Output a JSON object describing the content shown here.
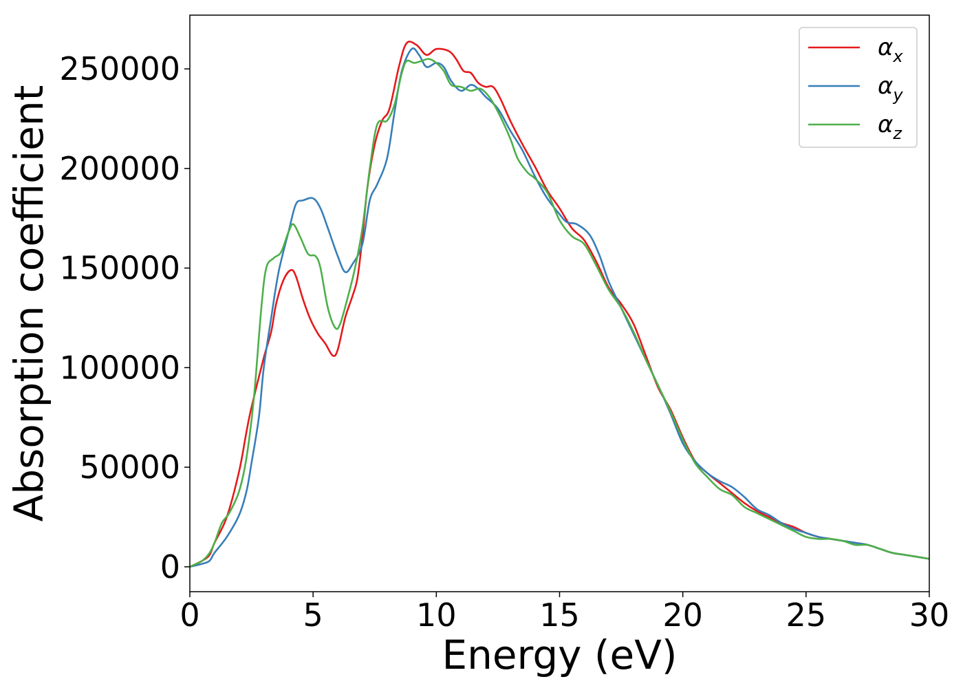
{
  "chart_data": {
    "type": "line",
    "xlabel": "Energy (eV)",
    "ylabel": "Absorption coefficient",
    "xlim": [
      0,
      30
    ],
    "ylim": [
      -12500,
      277000
    ],
    "xticks": [
      0,
      5,
      10,
      15,
      20,
      25,
      30
    ],
    "yticks": [
      0,
      50000,
      100000,
      150000,
      200000,
      250000
    ],
    "grid": false,
    "legend_position": "top-right",
    "series": [
      {
        "name": "α_x",
        "label_main": "α",
        "label_sub": "x",
        "color": "#e41a1c",
        "points": [
          [
            0,
            0
          ],
          [
            0.5,
            3000
          ],
          [
            0.8,
            6000
          ],
          [
            1.0,
            12000
          ],
          [
            1.5,
            25000
          ],
          [
            2.0,
            48000
          ],
          [
            2.3,
            68000
          ],
          [
            2.5,
            80000
          ],
          [
            3.0,
            105000
          ],
          [
            3.3,
            118000
          ],
          [
            3.5,
            132000
          ],
          [
            3.8,
            144000
          ],
          [
            4.1,
            149000
          ],
          [
            4.3,
            146000
          ],
          [
            4.6,
            134000
          ],
          [
            4.9,
            124000
          ],
          [
            5.2,
            117000
          ],
          [
            5.5,
            112000
          ],
          [
            5.8,
            106000
          ],
          [
            6.0,
            109000
          ],
          [
            6.3,
            125000
          ],
          [
            6.6,
            136000
          ],
          [
            6.8,
            145000
          ],
          [
            7.0,
            165000
          ],
          [
            7.2,
            190000
          ],
          [
            7.5,
            212000
          ],
          [
            7.8,
            224000
          ],
          [
            8.1,
            230000
          ],
          [
            8.5,
            252000
          ],
          [
            8.8,
            263000
          ],
          [
            9.2,
            262000
          ],
          [
            9.6,
            257000
          ],
          [
            10.0,
            260000
          ],
          [
            10.5,
            259000
          ],
          [
            10.8,
            255000
          ],
          [
            11.1,
            249000
          ],
          [
            11.4,
            248000
          ],
          [
            11.7,
            243000
          ],
          [
            12.0,
            241000
          ],
          [
            12.3,
            241000
          ],
          [
            12.6,
            235000
          ],
          [
            13.0,
            224000
          ],
          [
            13.5,
            212000
          ],
          [
            14.0,
            201000
          ],
          [
            14.5,
            189000
          ],
          [
            15.0,
            180000
          ],
          [
            15.5,
            170000
          ],
          [
            16.0,
            164000
          ],
          [
            16.5,
            153000
          ],
          [
            17.0,
            140000
          ],
          [
            17.5,
            132000
          ],
          [
            18.0,
            122000
          ],
          [
            18.5,
            106000
          ],
          [
            19.0,
            90000
          ],
          [
            19.5,
            79000
          ],
          [
            20.0,
            65000
          ],
          [
            20.5,
            53000
          ],
          [
            21.0,
            47000
          ],
          [
            21.5,
            42000
          ],
          [
            22.0,
            37000
          ],
          [
            22.5,
            32000
          ],
          [
            23.0,
            28000
          ],
          [
            23.5,
            25000
          ],
          [
            24.0,
            22000
          ],
          [
            24.5,
            20000
          ],
          [
            25.0,
            17000
          ],
          [
            25.5,
            15000
          ],
          [
            26.0,
            14000
          ],
          [
            26.5,
            13000
          ],
          [
            27.0,
            12000
          ],
          [
            27.5,
            11000
          ],
          [
            28.0,
            9000
          ],
          [
            28.5,
            7000
          ],
          [
            29.0,
            6000
          ],
          [
            29.5,
            5000
          ],
          [
            30.0,
            4000
          ]
        ]
      },
      {
        "name": "α_y",
        "label_main": "α",
        "label_sub": "y",
        "color": "#377eb8",
        "points": [
          [
            0,
            0
          ],
          [
            0.5,
            1500
          ],
          [
            0.8,
            3000
          ],
          [
            1.0,
            7000
          ],
          [
            1.5,
            15000
          ],
          [
            2.0,
            26000
          ],
          [
            2.3,
            38000
          ],
          [
            2.5,
            52000
          ],
          [
            2.8,
            75000
          ],
          [
            3.0,
            100000
          ],
          [
            3.3,
            125000
          ],
          [
            3.6,
            148000
          ],
          [
            4.0,
            168000
          ],
          [
            4.3,
            182000
          ],
          [
            4.6,
            184000
          ],
          [
            5.0,
            185000
          ],
          [
            5.3,
            180000
          ],
          [
            5.6,
            170000
          ],
          [
            6.0,
            156000
          ],
          [
            6.3,
            148000
          ],
          [
            6.6,
            152000
          ],
          [
            7.0,
            162000
          ],
          [
            7.3,
            184000
          ],
          [
            7.6,
            192000
          ],
          [
            8.0,
            205000
          ],
          [
            8.3,
            228000
          ],
          [
            8.6,
            249000
          ],
          [
            9.0,
            260000
          ],
          [
            9.3,
            257000
          ],
          [
            9.6,
            251000
          ],
          [
            10.0,
            253000
          ],
          [
            10.3,
            251000
          ],
          [
            10.6,
            244000
          ],
          [
            11.0,
            239000
          ],
          [
            11.4,
            242000
          ],
          [
            11.7,
            240000
          ],
          [
            12.0,
            236000
          ],
          [
            12.5,
            230000
          ],
          [
            13.0,
            219000
          ],
          [
            13.5,
            209000
          ],
          [
            14.0,
            196000
          ],
          [
            14.5,
            185000
          ],
          [
            15.0,
            177000
          ],
          [
            15.3,
            173000
          ],
          [
            15.7,
            172000
          ],
          [
            16.2,
            167000
          ],
          [
            16.6,
            157000
          ],
          [
            17.0,
            143000
          ],
          [
            17.5,
            130000
          ],
          [
            18.0,
            117000
          ],
          [
            18.5,
            104000
          ],
          [
            19.0,
            91000
          ],
          [
            19.5,
            77000
          ],
          [
            20.0,
            62000
          ],
          [
            20.5,
            53000
          ],
          [
            21.0,
            47000
          ],
          [
            21.5,
            43000
          ],
          [
            22.0,
            40000
          ],
          [
            22.5,
            35000
          ],
          [
            23.0,
            29000
          ],
          [
            23.5,
            26000
          ],
          [
            24.0,
            22000
          ],
          [
            24.5,
            19000
          ],
          [
            25.0,
            17000
          ],
          [
            25.5,
            15000
          ],
          [
            26.0,
            14000
          ],
          [
            26.5,
            13000
          ],
          [
            27.0,
            12000
          ],
          [
            27.5,
            11000
          ],
          [
            28.0,
            9000
          ],
          [
            28.5,
            7000
          ],
          [
            29.0,
            6000
          ],
          [
            29.5,
            5000
          ],
          [
            30.0,
            4000
          ]
        ]
      },
      {
        "name": "α_z",
        "label_main": "α",
        "label_sub": "z",
        "color": "#4daf4a",
        "points": [
          [
            0,
            0
          ],
          [
            0.5,
            3000
          ],
          [
            0.8,
            7000
          ],
          [
            1.0,
            12000
          ],
          [
            1.3,
            22000
          ],
          [
            1.6,
            27000
          ],
          [
            2.0,
            38000
          ],
          [
            2.3,
            55000
          ],
          [
            2.6,
            85000
          ],
          [
            2.9,
            130000
          ],
          [
            3.1,
            150000
          ],
          [
            3.4,
            155000
          ],
          [
            3.7,
            158000
          ],
          [
            4.0,
            168000
          ],
          [
            4.2,
            172000
          ],
          [
            4.5,
            165000
          ],
          [
            4.8,
            157000
          ],
          [
            5.1,
            156000
          ],
          [
            5.3,
            150000
          ],
          [
            5.6,
            130000
          ],
          [
            5.9,
            120000
          ],
          [
            6.1,
            122000
          ],
          [
            6.4,
            135000
          ],
          [
            6.7,
            150000
          ],
          [
            7.0,
            170000
          ],
          [
            7.3,
            200000
          ],
          [
            7.6,
            222000
          ],
          [
            8.0,
            224000
          ],
          [
            8.3,
            232000
          ],
          [
            8.6,
            248000
          ],
          [
            8.8,
            254000
          ],
          [
            9.1,
            253000
          ],
          [
            9.4,
            254000
          ],
          [
            9.7,
            255000
          ],
          [
            10.0,
            253000
          ],
          [
            10.3,
            249000
          ],
          [
            10.6,
            242000
          ],
          [
            11.0,
            241000
          ],
          [
            11.4,
            239000
          ],
          [
            11.8,
            240000
          ],
          [
            12.2,
            235000
          ],
          [
            12.6,
            226000
          ],
          [
            13.0,
            215000
          ],
          [
            13.3,
            205000
          ],
          [
            13.7,
            198000
          ],
          [
            14.0,
            195000
          ],
          [
            14.5,
            188000
          ],
          [
            15.0,
            174000
          ],
          [
            15.5,
            166000
          ],
          [
            16.0,
            162000
          ],
          [
            16.5,
            151000
          ],
          [
            17.0,
            139000
          ],
          [
            17.5,
            130000
          ],
          [
            18.0,
            118000
          ],
          [
            18.5,
            104000
          ],
          [
            19.0,
            91000
          ],
          [
            19.5,
            78000
          ],
          [
            20.0,
            64000
          ],
          [
            20.5,
            52000
          ],
          [
            21.0,
            45000
          ],
          [
            21.5,
            39000
          ],
          [
            22.0,
            36000
          ],
          [
            22.5,
            30000
          ],
          [
            23.0,
            27000
          ],
          [
            23.5,
            24000
          ],
          [
            24.0,
            21000
          ],
          [
            24.5,
            18000
          ],
          [
            25.0,
            15000
          ],
          [
            25.5,
            14000
          ],
          [
            26.0,
            14000
          ],
          [
            26.5,
            13000
          ],
          [
            27.0,
            11000
          ],
          [
            27.5,
            11000
          ],
          [
            28.0,
            9000
          ],
          [
            28.5,
            7000
          ],
          [
            29.0,
            6000
          ],
          [
            29.5,
            5000
          ],
          [
            30.0,
            4000
          ]
        ]
      }
    ]
  }
}
